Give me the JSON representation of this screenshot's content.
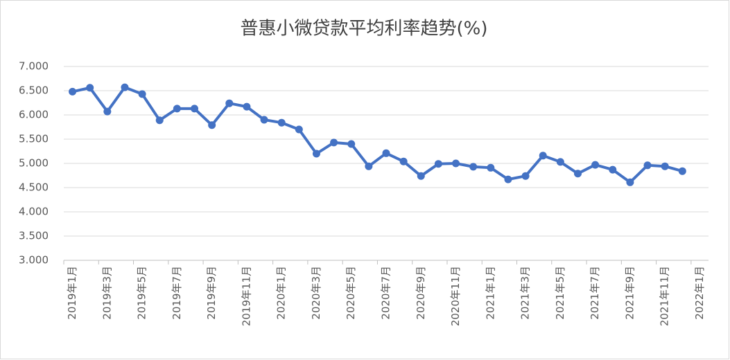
{
  "chart_data": {
    "type": "line",
    "title": "普惠小微贷款平均利率趋势(%)",
    "categories": [
      "2019年1月",
      null,
      "2019年3月",
      null,
      "2019年5月",
      null,
      "2019年7月",
      null,
      "2019年9月",
      null,
      "2019年11月",
      null,
      "2020年1月",
      null,
      "2020年3月",
      null,
      "2020年5月",
      null,
      "2020年7月",
      null,
      "2020年9月",
      null,
      "2020年11月",
      null,
      "2021年1月",
      null,
      "2021年3月",
      null,
      "2021年5月",
      null,
      "2021年7月",
      null,
      "2021年9月",
      null,
      "2021年11月",
      null,
      "2022年1月"
    ],
    "series": [
      {
        "name": "普惠小微贷款平均利率",
        "color": "#4472c4",
        "values": [
          6.48,
          6.56,
          6.07,
          6.57,
          6.43,
          5.89,
          6.13,
          6.13,
          5.79,
          6.24,
          6.17,
          5.9,
          5.84,
          5.7,
          5.2,
          5.43,
          5.4,
          4.94,
          5.21,
          5.04,
          4.74,
          4.99,
          5.0,
          4.93,
          4.91,
          4.67,
          4.74,
          5.16,
          5.03,
          4.79,
          4.97,
          4.87,
          4.61,
          4.96,
          4.94,
          4.84,
          null
        ]
      }
    ],
    "ylim": [
      3,
      7
    ],
    "yticks": [
      {
        "value": 3,
        "label": "3.000"
      },
      {
        "value": 3.5,
        "label": "3.500"
      },
      {
        "value": 4,
        "label": "4.000"
      },
      {
        "value": 4.5,
        "label": "4.500"
      },
      {
        "value": 5,
        "label": "5.000"
      },
      {
        "value": 5.5,
        "label": "5.500"
      },
      {
        "value": 6,
        "label": "6.000"
      },
      {
        "value": 6.5,
        "label": "6.500"
      },
      {
        "value": 7,
        "label": "7.000"
      }
    ],
    "grid": true
  }
}
